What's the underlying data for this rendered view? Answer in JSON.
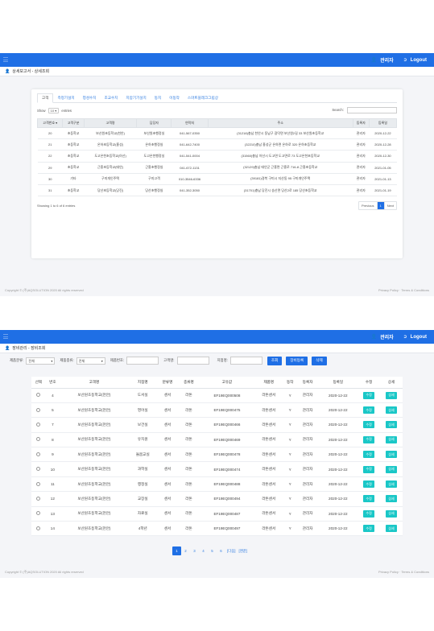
{
  "screen1": {
    "topbar": {
      "user": "관리자",
      "logout": "Logout"
    },
    "breadcrumb": "상세보고서 - 상세조회",
    "tabs": [
      "고객",
      "측정기설치",
      "청성수치",
      "조교수치",
      "치압기기설치",
      "동치",
      "이동작",
      "스마트블레크그립상"
    ],
    "show_label": "Show",
    "entries_value": "10",
    "entries_label": "entries",
    "search_label": "Search:",
    "columns": [
      "고객번호",
      "고객구분",
      "고객명",
      "담당자",
      "연락처",
      "주소",
      "등록자",
      "등록일"
    ],
    "rows": [
      [
        "20",
        "초등학교",
        "보산원초등학교(천안)",
        "보산원초행정실",
        "041-567-0350",
        "(31218)충남 천안시 동남구 광덕면 보산원2길 33 보산원초등학교",
        "관리자",
        "2020-12-22"
      ],
      [
        "21",
        "초등학교",
        "온하초등학교(홍성)",
        "온하초행정실",
        "041-642-7400",
        "(32210)충남 홍성군 온하면 온하로 320 온하초등학교",
        "관리자",
        "2020-12-28"
      ],
      [
        "22",
        "초등학교",
        "도고온천초등학교(아산)",
        "도고온천행정실",
        "041-541-0004",
        "(31560)충남 아산시 도고면 도고면로 73 도고온천초등학교",
        "관리자",
        "2020-12-30"
      ],
      [
        "29",
        "초등학교",
        "근흥초등학교(태안)",
        "근흥초행정실",
        "041-672-1131",
        "(32129)충남 태안군 근흥면 근흥로 716-8 근흥초등학교",
        "관리자",
        "2021-01-05"
      ],
      [
        "30",
        "기타",
        "구미개인주택",
        "구미고객",
        "010-3546-6336",
        "(39181)경북 구미시 지산동 95 구미개인주택",
        "관리자",
        "2021-01-13"
      ],
      [
        "31",
        "초등학교",
        "당산초등학교(당진)",
        "당산초행정실",
        "041-352-3050",
        "(31701)충남 당진시 송산면 당산2로 185 당산초등학교",
        "관리자",
        "2021-01-19"
      ]
    ],
    "info": "Showing 1 to 6 of 6 entries",
    "pager": {
      "prev": "Previous",
      "current": "1",
      "next": "Next"
    },
    "footer_left": "Copyright © (주)AQSOLUTION 2020 All rights reserved",
    "footer_right": "Privacy Policy · Terms & Conditions"
  },
  "screen2": {
    "topbar": {
      "user": "관리자",
      "logout": "Logout"
    },
    "breadcrumb": "장비관리 - 장비조회",
    "filter": {
      "type_label": "제품분류:",
      "type_value": "전체",
      "kind_label": "제품종류:",
      "kind_value": "전체",
      "serial_label": "제품번호:",
      "customer_label": "고객명:",
      "location_label": "지점명:",
      "search_btn": "조회",
      "register_btn": "장비등록",
      "delete_btn": "삭제"
    },
    "columns": [
      "선택",
      "번호",
      "고객명",
      "지점명",
      "분류명",
      "종류명",
      "고유값",
      "제품명",
      "동작",
      "등록자",
      "등록일",
      "수정",
      "상세"
    ],
    "rows": [
      [
        "4",
        "보산원초등학교(천안)",
        "도서실",
        "센서",
        "라돈",
        "EF19EQ000508",
        "라돈센서",
        "Y",
        "관리자",
        "2020-12-22"
      ],
      [
        "5",
        "보산원초등학교(천안)",
        "영어실",
        "센서",
        "라돈",
        "EF19EQ000475",
        "라돈센서",
        "Y",
        "관리자",
        "2020-12-22"
      ],
      [
        "7",
        "보산원초등학교(천안)",
        "보건실",
        "센서",
        "라돈",
        "EF19EQ000466",
        "라돈센서",
        "Y",
        "관리자",
        "2020-12-22"
      ],
      [
        "8",
        "보산원초등학교(천안)",
        "유치원",
        "센서",
        "라돈",
        "EF19EQ000469",
        "라돈센서",
        "Y",
        "관리자",
        "2020-12-22"
      ],
      [
        "9",
        "보산원초등학교(천안)",
        "돌봄교실",
        "센서",
        "라돈",
        "EF19EQ000478",
        "라돈센서",
        "Y",
        "관리자",
        "2020-12-22"
      ],
      [
        "10",
        "보산원초등학교(천안)",
        "과학실",
        "센서",
        "라돈",
        "EF19EQ000474",
        "라돈센서",
        "Y",
        "관리자",
        "2020-12-22"
      ],
      [
        "11",
        "보산원초등학교(천안)",
        "행정실",
        "센서",
        "라돈",
        "EF19EQ000488",
        "라돈센서",
        "Y",
        "관리자",
        "2020-12-22"
      ],
      [
        "12",
        "보산원초등학교(천안)",
        "교장실",
        "센서",
        "라돈",
        "EF19EQ000494",
        "라돈센서",
        "Y",
        "관리자",
        "2020-12-22"
      ],
      [
        "13",
        "보산원초등학교(천안)",
        "자료실",
        "센서",
        "라돈",
        "EF19EQ000487",
        "라돈센서",
        "Y",
        "관리자",
        "2020-12-22"
      ],
      [
        "14",
        "보산원초등학교(천안)",
        "4학년",
        "센서",
        "라돈",
        "EF19EQ000497",
        "라돈센서",
        "Y",
        "관리자",
        "2020-12-22"
      ]
    ],
    "edit_label": "수정",
    "detail_label": "상세",
    "pages": [
      "1",
      "2",
      "3",
      "4",
      "5",
      "6"
    ],
    "next_label": "[다음]",
    "last_label": "[맨끝]",
    "footer_left": "Copyright © (주)AQSOLUTION 2020 All rights reserved",
    "footer_right": "Privacy Policy · Terms & Conditions"
  }
}
